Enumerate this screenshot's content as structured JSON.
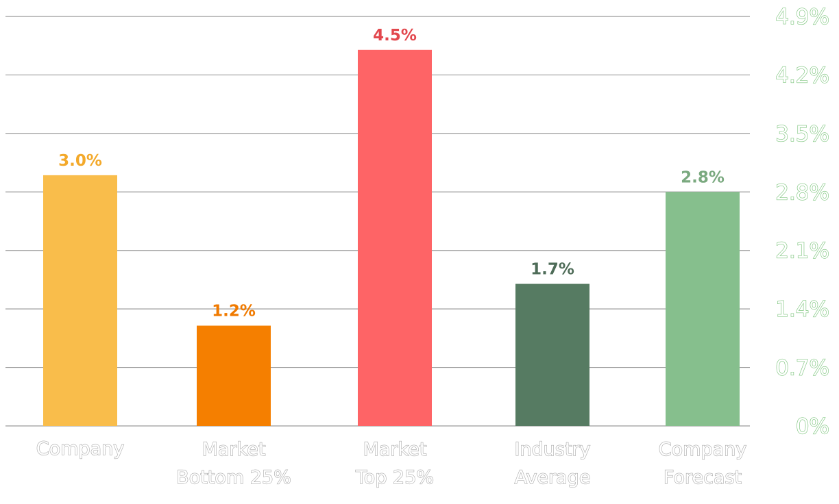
{
  "chart_data": {
    "type": "bar",
    "categories": [
      [
        "Company"
      ],
      [
        "Market",
        "Bottom 25%"
      ],
      [
        "Market",
        "Top 25%"
      ],
      [
        "Industry",
        "Average"
      ],
      [
        "Company",
        "Forecast"
      ]
    ],
    "values": [
      3.0,
      1.2,
      4.5,
      1.7,
      2.8
    ],
    "value_labels": [
      "3.0%",
      "1.2%",
      "4.5%",
      "1.7%",
      "2.8%"
    ],
    "colors": [
      "#f9bd4b",
      "#f57f00",
      "#fe6466",
      "#567b62",
      "#86bf8d"
    ],
    "label_colors": [
      "#f3a92a",
      "#f07a00",
      "#e2474d",
      "#4e6c58",
      "#7aa97f"
    ],
    "ylim": [
      0,
      4.9
    ],
    "y_ticks": [
      0,
      0.7,
      1.4,
      2.1,
      2.8,
      3.5,
      4.2,
      4.9
    ],
    "y_tick_labels": [
      "0%",
      "0.7%",
      "1.4%",
      "2.1%",
      "2.8%",
      "3.5%",
      "4.2%",
      "4.9%"
    ],
    "y_axis_position": "right",
    "grid": true,
    "title": "",
    "xlabel": "",
    "ylabel": ""
  }
}
